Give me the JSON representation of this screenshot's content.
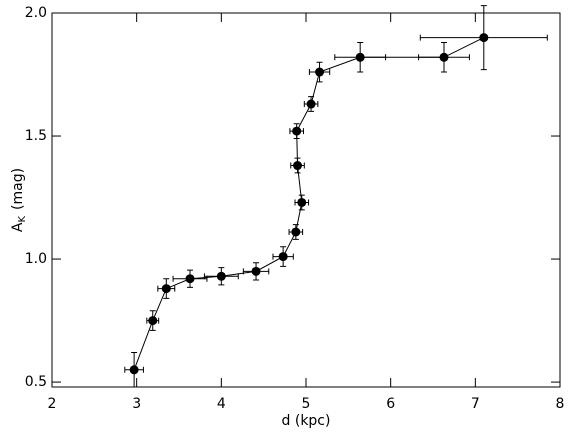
{
  "chart_data": {
    "type": "scatter",
    "x_label": "d (kpc)",
    "y_label": "A",
    "y_label_sub": "K",
    "y_label_unit": "(mag)",
    "x": [
      2.97,
      3.19,
      3.35,
      3.63,
      4.0,
      4.41,
      4.73,
      4.88,
      4.95,
      4.9,
      4.89,
      5.06,
      5.16,
      5.64,
      6.63,
      7.1
    ],
    "values": [
      0.55,
      0.75,
      0.88,
      0.92,
      0.93,
      0.95,
      1.01,
      1.11,
      1.23,
      1.38,
      1.52,
      1.63,
      1.76,
      1.82,
      1.82,
      1.9
    ],
    "xerr": [
      0.11,
      0.07,
      0.1,
      0.2,
      0.2,
      0.15,
      0.12,
      0.08,
      0.08,
      0.08,
      0.08,
      0.08,
      0.12,
      0.3,
      0.3,
      0.75
    ],
    "yerr": [
      0.07,
      0.04,
      0.04,
      0.035,
      0.035,
      0.035,
      0.04,
      0.03,
      0.03,
      0.03,
      0.03,
      0.03,
      0.04,
      0.06,
      0.06,
      0.13
    ],
    "color": "#000000",
    "xlim": [
      2,
      8
    ],
    "ylim": [
      0.48,
      2.0
    ],
    "xticks": [
      2,
      3,
      4,
      5,
      6,
      7,
      8
    ],
    "yticks": [
      0.5,
      {
        "value": 1,
        "label": "1.0"
      },
      1.5,
      {
        "value": 2,
        "label": "2.0"
      }
    ]
  }
}
